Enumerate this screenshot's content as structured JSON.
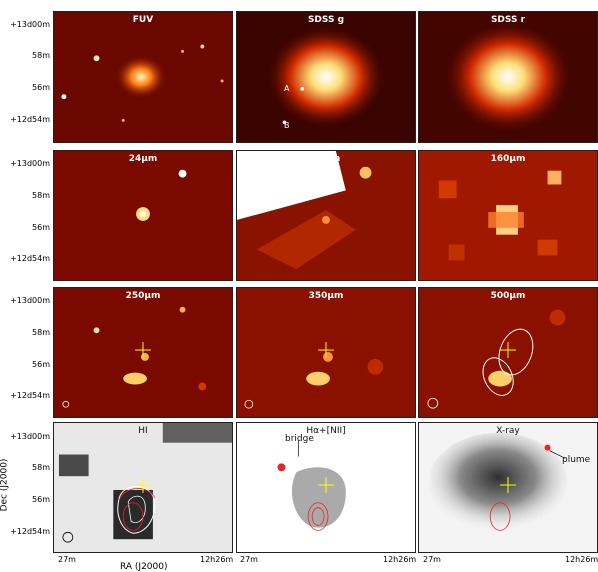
{
  "panels": [
    {
      "title": "FUV"
    },
    {
      "title": "SDSS g"
    },
    {
      "title": "SDSS r"
    },
    {
      "title": "24μm"
    },
    {
      "title": "70μm"
    },
    {
      "title": "160μm"
    },
    {
      "title": "250μm"
    },
    {
      "title": "350μm"
    },
    {
      "title": "500μm"
    },
    {
      "title": "HI"
    },
    {
      "title": "Hα+[NII]"
    },
    {
      "title": "X-ray"
    }
  ],
  "y_ticks": [
    "+13d00m",
    "58m",
    "56m",
    "+12d54m"
  ],
  "x_ticks": [
    "27m",
    "12h26m"
  ],
  "y_axis_title": "Dec (J2000)",
  "x_axis_title": "RA (J2000)",
  "annotations": {
    "source_a": "A",
    "source_b": "B",
    "bridge": "bridge",
    "plume": "plume"
  },
  "colors": {
    "heat_bg": "#7a0a00",
    "heat_mid": "#c02200",
    "heat_hot": "#ffcf6a",
    "crosshair": "#ffff00",
    "contour": "#ee2222"
  }
}
